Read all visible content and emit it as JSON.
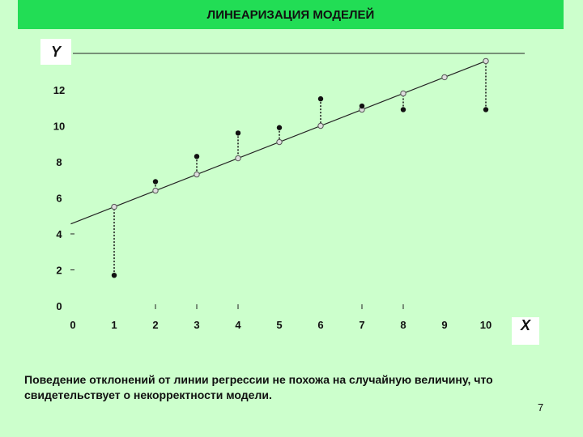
{
  "header": {
    "title": "ЛИНЕАРИЗАЦИЯ МОДЕЛЕЙ"
  },
  "caption": "Поведение отклонений от линии регрессии не похожа на случайную величину, что свидетельствует о некорректности модели.",
  "page_number": "7",
  "chart_data": {
    "type": "scatter",
    "title": "",
    "xlabel": "X",
    "ylabel": "Y",
    "xlim": [
      0,
      11
    ],
    "ylim": [
      0,
      13
    ],
    "x_ticks": [
      "0",
      "1",
      "2",
      "3",
      "4",
      "5",
      "6",
      "7",
      "8",
      "9",
      "10"
    ],
    "y_ticks": [
      "0",
      "2",
      "4",
      "6",
      "8",
      "10",
      "12"
    ],
    "regression_line": {
      "intercept": 4.6,
      "slope": 0.9
    },
    "series": [
      {
        "role": "observed",
        "color": "#111111",
        "points": [
          {
            "x": 1,
            "y": 1.7
          },
          {
            "x": 2,
            "y": 6.9
          },
          {
            "x": 3,
            "y": 8.3
          },
          {
            "x": 4,
            "y": 9.6
          },
          {
            "x": 5,
            "y": 9.9
          },
          {
            "x": 6,
            "y": 11.5
          },
          {
            "x": 7,
            "y": 11.1
          },
          {
            "x": 8,
            "y": 10.9
          },
          {
            "x": 10,
            "y": 10.9
          }
        ]
      },
      {
        "role": "fitted",
        "color": "#dddddd",
        "points": [
          {
            "x": 1,
            "y": 5.5
          },
          {
            "x": 2,
            "y": 6.4
          },
          {
            "x": 3,
            "y": 7.3
          },
          {
            "x": 4,
            "y": 8.2
          },
          {
            "x": 5,
            "y": 9.1
          },
          {
            "x": 6,
            "y": 10.0
          },
          {
            "x": 7,
            "y": 10.9
          },
          {
            "x": 8,
            "y": 11.8
          },
          {
            "x": 9,
            "y": 12.7
          },
          {
            "x": 10,
            "y": 13.6
          }
        ]
      }
    ]
  }
}
